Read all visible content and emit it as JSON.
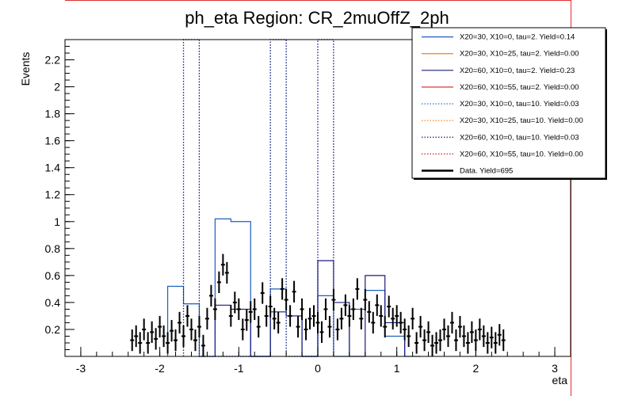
{
  "chart_data": {
    "type": "histogram",
    "title": "ph_eta Region: CR_2muOffZ_2ph",
    "xlabel": "eta",
    "ylabel": "Events",
    "xlim": [
      -3.2,
      3.2
    ],
    "ylim": [
      0,
      2.35
    ],
    "x_ticks": [
      -3,
      -2,
      -1,
      0,
      1,
      2,
      3
    ],
    "y_ticks": [
      0.2,
      0.4,
      0.6,
      0.8,
      1,
      1.2,
      1.4,
      1.6,
      1.8,
      2,
      2.2
    ],
    "grid": false,
    "legend_position": "top-right",
    "series": [
      {
        "name": "X20=30, X10=0, tau=2. Yield=0.14",
        "color": "#1f5fbf",
        "style": "solid",
        "edges": [
          -1.9,
          -1.7,
          -1.5,
          -1.3,
          -1.1,
          -0.85,
          -0.6,
          -0.4,
          -0.2,
          0,
          0.2,
          0.4,
          0.6,
          0.85,
          1.1,
          1.3
        ],
        "values": [
          0.52,
          0.39,
          0,
          1.02,
          1.0,
          0,
          0.5,
          0.3,
          0,
          0.45,
          0,
          0.35,
          0.49,
          0.15,
          0
        ]
      },
      {
        "name": "X20=30, X10=25, tau=2. Yield=0.00",
        "color": "#f07f1a",
        "style": "solid",
        "edges": [],
        "values": []
      },
      {
        "name": "X20=60, X10=0, tau=2. Yield=0.23",
        "color": "#1c1c7a",
        "style": "solid",
        "edges": [
          -1.3,
          -1.1,
          -0.85,
          -0.6,
          -0.4,
          -0.2,
          0,
          0.2,
          0.4,
          0.6,
          0.85,
          1.1
        ],
        "values": [
          0.38,
          0.35,
          0,
          0.33,
          0.3,
          0,
          0.71,
          0.4,
          0,
          0.6,
          0.25
        ]
      },
      {
        "name": "X20=60, X10=55, tau=2. Yield=0.00",
        "color": "#d42020",
        "style": "solid",
        "edges": [],
        "values": []
      },
      {
        "name": "X20=30, X10=0, tau=10. Yield=0.03",
        "color": "#1f5fbf",
        "style": "dotted",
        "edges": [
          -1.7,
          -1.5,
          -0.6,
          -0.4,
          0,
          0.2
        ],
        "values": [
          2.35,
          0,
          2.35,
          0,
          2.35
        ]
      },
      {
        "name": "X20=30, X10=25, tau=10. Yield=0.00",
        "color": "#f07f1a",
        "style": "dotted",
        "edges": [],
        "values": []
      },
      {
        "name": "X20=60, X10=0, tau=10. Yield=0.03",
        "color": "#1c1c7a",
        "style": "dotted",
        "edges": [
          -1.7,
          -1.5,
          -0.6,
          -0.4,
          0,
          0.2
        ],
        "values": [
          2.35,
          0,
          2.35,
          0,
          2.35
        ]
      },
      {
        "name": "X20=60, X10=55, tau=10. Yield=0.00",
        "color": "#d42020",
        "style": "dotted",
        "edges": [],
        "values": []
      },
      {
        "name": "Data. Yield=695",
        "color": "#000000",
        "style": "points",
        "x": [
          -2.35,
          -2.3,
          -2.25,
          -2.2,
          -2.15,
          -2.1,
          -2.05,
          -2.0,
          -1.95,
          -1.9,
          -1.85,
          -1.8,
          -1.75,
          -1.7,
          -1.65,
          -1.6,
          -1.55,
          -1.5,
          -1.45,
          -1.4,
          -1.35,
          -1.3,
          -1.25,
          -1.2,
          -1.15,
          -1.1,
          -1.05,
          -1.0,
          -0.95,
          -0.9,
          -0.85,
          -0.8,
          -0.75,
          -0.7,
          -0.65,
          -0.6,
          -0.55,
          -0.5,
          -0.45,
          -0.4,
          -0.35,
          -0.3,
          -0.25,
          -0.2,
          -0.15,
          -0.1,
          -0.05,
          0.0,
          0.05,
          0.1,
          0.15,
          0.2,
          0.25,
          0.3,
          0.35,
          0.4,
          0.45,
          0.5,
          0.55,
          0.6,
          0.65,
          0.7,
          0.75,
          0.8,
          0.85,
          0.9,
          0.95,
          1.0,
          1.05,
          1.1,
          1.15,
          1.2,
          1.25,
          1.3,
          1.35,
          1.4,
          1.45,
          1.5,
          1.55,
          1.6,
          1.65,
          1.7,
          1.75,
          1.8,
          1.85,
          1.9,
          1.95,
          2.0,
          2.05,
          2.1,
          2.15,
          2.2,
          2.25,
          2.3,
          2.35
        ],
        "y": [
          0.12,
          0.15,
          0.1,
          0.2,
          0.1,
          0.18,
          0.13,
          0.22,
          0.15,
          0.1,
          0.19,
          0.12,
          0.25,
          0.15,
          0.3,
          0.2,
          0.12,
          0.22,
          0.08,
          0.28,
          0.45,
          0.35,
          0.55,
          0.68,
          0.62,
          0.3,
          0.4,
          0.35,
          0.2,
          0.27,
          0.33,
          0.35,
          0.22,
          0.47,
          0.3,
          0.37,
          0.28,
          0.25,
          0.5,
          0.42,
          0.3,
          0.48,
          0.22,
          0.35,
          0.2,
          0.28,
          0.3,
          0.25,
          0.18,
          0.35,
          0.22,
          0.42,
          0.2,
          0.28,
          0.38,
          0.3,
          0.35,
          0.5,
          0.28,
          0.42,
          0.33,
          0.25,
          0.38,
          0.3,
          0.22,
          0.37,
          0.28,
          0.3,
          0.25,
          0.2,
          0.15,
          0.28,
          0.1,
          0.22,
          0.12,
          0.18,
          0.08,
          0.1,
          0.12,
          0.2,
          0.15,
          0.25,
          0.12,
          0.22,
          0.15,
          0.1,
          0.18,
          0.12,
          0.2,
          0.15,
          0.1,
          0.14,
          0.1,
          0.16,
          0.12
        ],
        "yerr": 0.08
      }
    ]
  }
}
